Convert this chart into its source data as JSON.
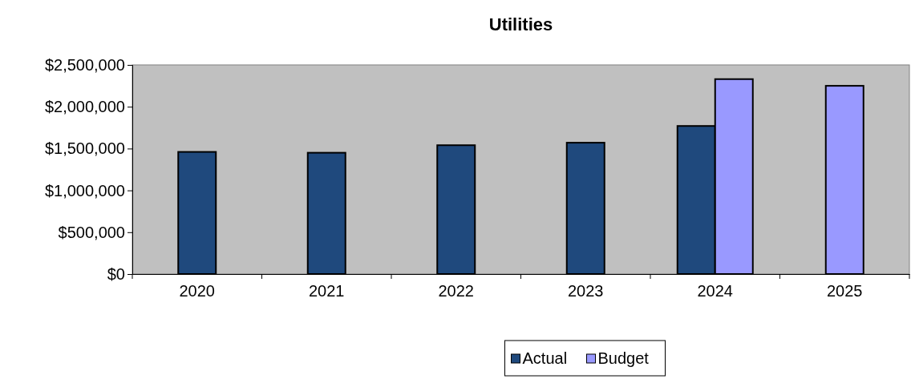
{
  "chart_data": {
    "type": "bar",
    "title": "Utilities",
    "categories": [
      "2020",
      "2021",
      "2022",
      "2023",
      "2024",
      "2025"
    ],
    "series": [
      {
        "name": "Actual",
        "color": "#1f497d",
        "values": [
          1460000,
          1450000,
          1540000,
          1570000,
          1770000,
          null
        ]
      },
      {
        "name": "Budget",
        "color": "#9999ff",
        "values": [
          null,
          null,
          null,
          null,
          2330000,
          2250000
        ]
      }
    ],
    "ylim": [
      0,
      2500000
    ],
    "yticks": [
      {
        "value": 0,
        "label": "$0"
      },
      {
        "value": 500000,
        "label": "$500,000"
      },
      {
        "value": 1000000,
        "label": "$1,000,000"
      },
      {
        "value": 1500000,
        "label": "$1,500,000"
      },
      {
        "value": 2000000,
        "label": "$2,000,000"
      },
      {
        "value": 2500000,
        "label": "$2,500,000"
      }
    ],
    "grid": false,
    "legend": "bottom"
  }
}
